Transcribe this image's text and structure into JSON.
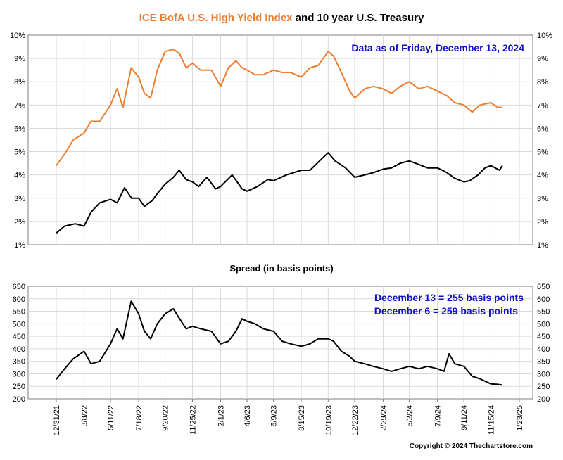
{
  "title": {
    "part1": "ICE BofA U.S. High Yield Index",
    "part2": " and 10 year U.S. Treasury"
  },
  "annotation_date": "Data as of Friday, December 13, 2024",
  "spread_title": "Spread (in basis points)",
  "spread_notes": [
    "December 13 = 255 basis points",
    "December 6 = 259 basis points"
  ],
  "copyright": "Copyright © 2024 Thechartstore.com",
  "colors": {
    "high_yield": "#ED7D31",
    "treasury": "#000000",
    "annotation": "#1010C0",
    "grid": "#d9d9d9"
  },
  "chart_data": [
    {
      "type": "line",
      "title": "ICE BofA U.S. High Yield Index and 10 year U.S. Treasury",
      "ylim": [
        1,
        10
      ],
      "y_ticks": [
        "1%",
        "2%",
        "3%",
        "4%",
        "5%",
        "6%",
        "7%",
        "8%",
        "9%",
        "10%"
      ],
      "x_ticks": [
        "12/31/21",
        "3/8/22",
        "5/11/22",
        "7/18/22",
        "9/20/22",
        "11/25/22",
        "2/1/23",
        "4/6/23",
        "6/9/23",
        "8/15/23",
        "10/19/23",
        "12/22/23",
        "2/29/24",
        "5/2/24",
        "7/9/24",
        "9/11/24",
        "11/15/24",
        "1/23/25"
      ],
      "grid": true,
      "series": [
        {
          "name": "ICE BofA U.S. High Yield Index",
          "color": "#ED7D31",
          "points": [
            [
              "12/31/21",
              4.4
            ],
            [
              "1/20/22",
              4.9
            ],
            [
              "2/10/22",
              5.5
            ],
            [
              "3/8/22",
              5.8
            ],
            [
              "3/25/22",
              6.3
            ],
            [
              "4/15/22",
              6.3
            ],
            [
              "5/11/22",
              7.0
            ],
            [
              "5/27/22",
              7.7
            ],
            [
              "6/10/22",
              6.9
            ],
            [
              "6/30/22",
              8.6
            ],
            [
              "7/18/22",
              8.2
            ],
            [
              "8/1/22",
              7.5
            ],
            [
              "8/16/22",
              7.3
            ],
            [
              "9/1/22",
              8.5
            ],
            [
              "9/20/22",
              9.3
            ],
            [
              "10/10/22",
              9.4
            ],
            [
              "10/25/22",
              9.2
            ],
            [
              "11/10/22",
              8.6
            ],
            [
              "11/25/22",
              8.8
            ],
            [
              "12/15/22",
              8.5
            ],
            [
              "1/10/23",
              8.5
            ],
            [
              "2/1/23",
              7.8
            ],
            [
              "2/20/23",
              8.6
            ],
            [
              "3/10/23",
              8.9
            ],
            [
              "3/25/23",
              8.6
            ],
            [
              "4/6/23",
              8.5
            ],
            [
              "4/25/23",
              8.3
            ],
            [
              "5/15/23",
              8.3
            ],
            [
              "6/9/23",
              8.5
            ],
            [
              "6/30/23",
              8.4
            ],
            [
              "7/20/23",
              8.4
            ],
            [
              "8/15/23",
              8.2
            ],
            [
              "9/5/23",
              8.6
            ],
            [
              "9/25/23",
              8.7
            ],
            [
              "10/19/23",
              9.3
            ],
            [
              "11/1/23",
              9.1
            ],
            [
              "11/20/23",
              8.4
            ],
            [
              "12/10/23",
              7.6
            ],
            [
              "12/22/23",
              7.3
            ],
            [
              "1/15/24",
              7.7
            ],
            [
              "2/5/24",
              7.8
            ],
            [
              "2/29/24",
              7.7
            ],
            [
              "3/20/24",
              7.5
            ],
            [
              "4/10/24",
              7.8
            ],
            [
              "5/2/24",
              8.0
            ],
            [
              "5/25/24",
              7.7
            ],
            [
              "6/15/24",
              7.8
            ],
            [
              "7/9/24",
              7.6
            ],
            [
              "8/1/24",
              7.4
            ],
            [
              "8/20/24",
              7.1
            ],
            [
              "9/11/24",
              7.0
            ],
            [
              "10/1/24",
              6.7
            ],
            [
              "10/20/24",
              7.0
            ],
            [
              "11/15/24",
              7.1
            ],
            [
              "12/1/24",
              6.9
            ],
            [
              "12/13/24",
              6.9
            ]
          ]
        },
        {
          "name": "10 year U.S. Treasury",
          "color": "#000000",
          "points": [
            [
              "12/31/21",
              1.5
            ],
            [
              "1/20/22",
              1.8
            ],
            [
              "2/15/22",
              1.9
            ],
            [
              "3/8/22",
              1.8
            ],
            [
              "3/25/22",
              2.4
            ],
            [
              "4/15/22",
              2.8
            ],
            [
              "5/11/22",
              2.95
            ],
            [
              "5/27/22",
              2.8
            ],
            [
              "6/14/22",
              3.45
            ],
            [
              "7/1/22",
              3.0
            ],
            [
              "7/18/22",
              3.0
            ],
            [
              "8/1/22",
              2.65
            ],
            [
              "8/20/22",
              2.9
            ],
            [
              "9/1/22",
              3.2
            ],
            [
              "9/20/22",
              3.6
            ],
            [
              "10/10/22",
              3.9
            ],
            [
              "10/24/22",
              4.2
            ],
            [
              "11/10/22",
              3.8
            ],
            [
              "11/25/22",
              3.7
            ],
            [
              "12/10/22",
              3.5
            ],
            [
              "12/30/22",
              3.9
            ],
            [
              "1/20/23",
              3.4
            ],
            [
              "2/1/23",
              3.5
            ],
            [
              "3/1/23",
              4.0
            ],
            [
              "3/25/23",
              3.4
            ],
            [
              "4/6/23",
              3.3
            ],
            [
              "5/1/23",
              3.5
            ],
            [
              "5/26/23",
              3.8
            ],
            [
              "6/9/23",
              3.75
            ],
            [
              "7/10/23",
              4.0
            ],
            [
              "8/15/23",
              4.2
            ],
            [
              "9/5/23",
              4.2
            ],
            [
              "9/28/23",
              4.6
            ],
            [
              "10/19/23",
              4.95
            ],
            [
              "11/5/23",
              4.6
            ],
            [
              "11/30/23",
              4.3
            ],
            [
              "12/22/23",
              3.9
            ],
            [
              "1/15/24",
              4.0
            ],
            [
              "2/5/24",
              4.1
            ],
            [
              "2/29/24",
              4.25
            ],
            [
              "3/20/24",
              4.3
            ],
            [
              "4/10/24",
              4.5
            ],
            [
              "5/2/24",
              4.6
            ],
            [
              "5/25/24",
              4.45
            ],
            [
              "6/15/24",
              4.3
            ],
            [
              "7/9/24",
              4.3
            ],
            [
              "8/1/24",
              4.1
            ],
            [
              "8/20/24",
              3.85
            ],
            [
              "9/11/24",
              3.7
            ],
            [
              "9/25/24",
              3.75
            ],
            [
              "10/15/24",
              4.0
            ],
            [
              "11/1/24",
              4.3
            ],
            [
              "11/15/24",
              4.4
            ],
            [
              "12/6/24",
              4.2
            ],
            [
              "12/13/24",
              4.4
            ]
          ]
        }
      ]
    },
    {
      "type": "line",
      "title": "Spread (in basis points)",
      "ylim": [
        200,
        650
      ],
      "y_ticks": [
        "200",
        "250",
        "300",
        "350",
        "400",
        "450",
        "500",
        "550",
        "600",
        "650"
      ],
      "x_ticks": [
        "12/31/21",
        "3/8/22",
        "5/11/22",
        "7/18/22",
        "9/20/22",
        "11/25/22",
        "2/1/23",
        "4/6/23",
        "6/9/23",
        "8/15/23",
        "10/19/23",
        "12/22/23",
        "2/29/24",
        "5/2/24",
        "7/9/24",
        "9/11/24",
        "11/15/24",
        "1/23/25"
      ],
      "grid": true,
      "series": [
        {
          "color": "#000000",
          "points": [
            [
              "12/31/21",
              278
            ],
            [
              "1/20/22",
              320
            ],
            [
              "2/10/22",
              360
            ],
            [
              "3/8/22",
              390
            ],
            [
              "3/25/22",
              340
            ],
            [
              "4/15/22",
              350
            ],
            [
              "5/11/22",
              420
            ],
            [
              "5/27/22",
              480
            ],
            [
              "6/10/22",
              440
            ],
            [
              "6/30/22",
              590
            ],
            [
              "7/18/22",
              540
            ],
            [
              "8/1/22",
              470
            ],
            [
              "8/16/22",
              440
            ],
            [
              "9/1/22",
              500
            ],
            [
              "9/20/22",
              540
            ],
            [
              "10/10/22",
              560
            ],
            [
              "10/25/22",
              520
            ],
            [
              "11/10/22",
              480
            ],
            [
              "11/25/22",
              490
            ],
            [
              "12/15/22",
              480
            ],
            [
              "1/10/23",
              470
            ],
            [
              "2/1/23",
              420
            ],
            [
              "2/20/23",
              430
            ],
            [
              "3/10/23",
              470
            ],
            [
              "3/25/23",
              520
            ],
            [
              "4/6/23",
              510
            ],
            [
              "4/25/23",
              500
            ],
            [
              "5/15/23",
              480
            ],
            [
              "6/9/23",
              470
            ],
            [
              "6/30/23",
              430
            ],
            [
              "7/20/23",
              420
            ],
            [
              "8/15/23",
              410
            ],
            [
              "9/5/23",
              420
            ],
            [
              "9/25/23",
              440
            ],
            [
              "10/19/23",
              440
            ],
            [
              "11/1/23",
              430
            ],
            [
              "11/20/23",
              390
            ],
            [
              "12/10/23",
              370
            ],
            [
              "12/22/23",
              350
            ],
            [
              "1/15/24",
              340
            ],
            [
              "2/5/24",
              330
            ],
            [
              "2/29/24",
              320
            ],
            [
              "3/20/24",
              310
            ],
            [
              "4/10/24",
              320
            ],
            [
              "5/2/24",
              330
            ],
            [
              "5/25/24",
              320
            ],
            [
              "6/15/24",
              330
            ],
            [
              "7/9/24",
              320
            ],
            [
              "7/25/24",
              310
            ],
            [
              "8/6/24",
              380
            ],
            [
              "8/20/24",
              340
            ],
            [
              "9/11/24",
              330
            ],
            [
              "10/1/24",
              290
            ],
            [
              "10/20/24",
              280
            ],
            [
              "11/15/24",
              260
            ],
            [
              "12/1/24",
              258
            ],
            [
              "12/13/24",
              255
            ]
          ]
        }
      ]
    }
  ]
}
